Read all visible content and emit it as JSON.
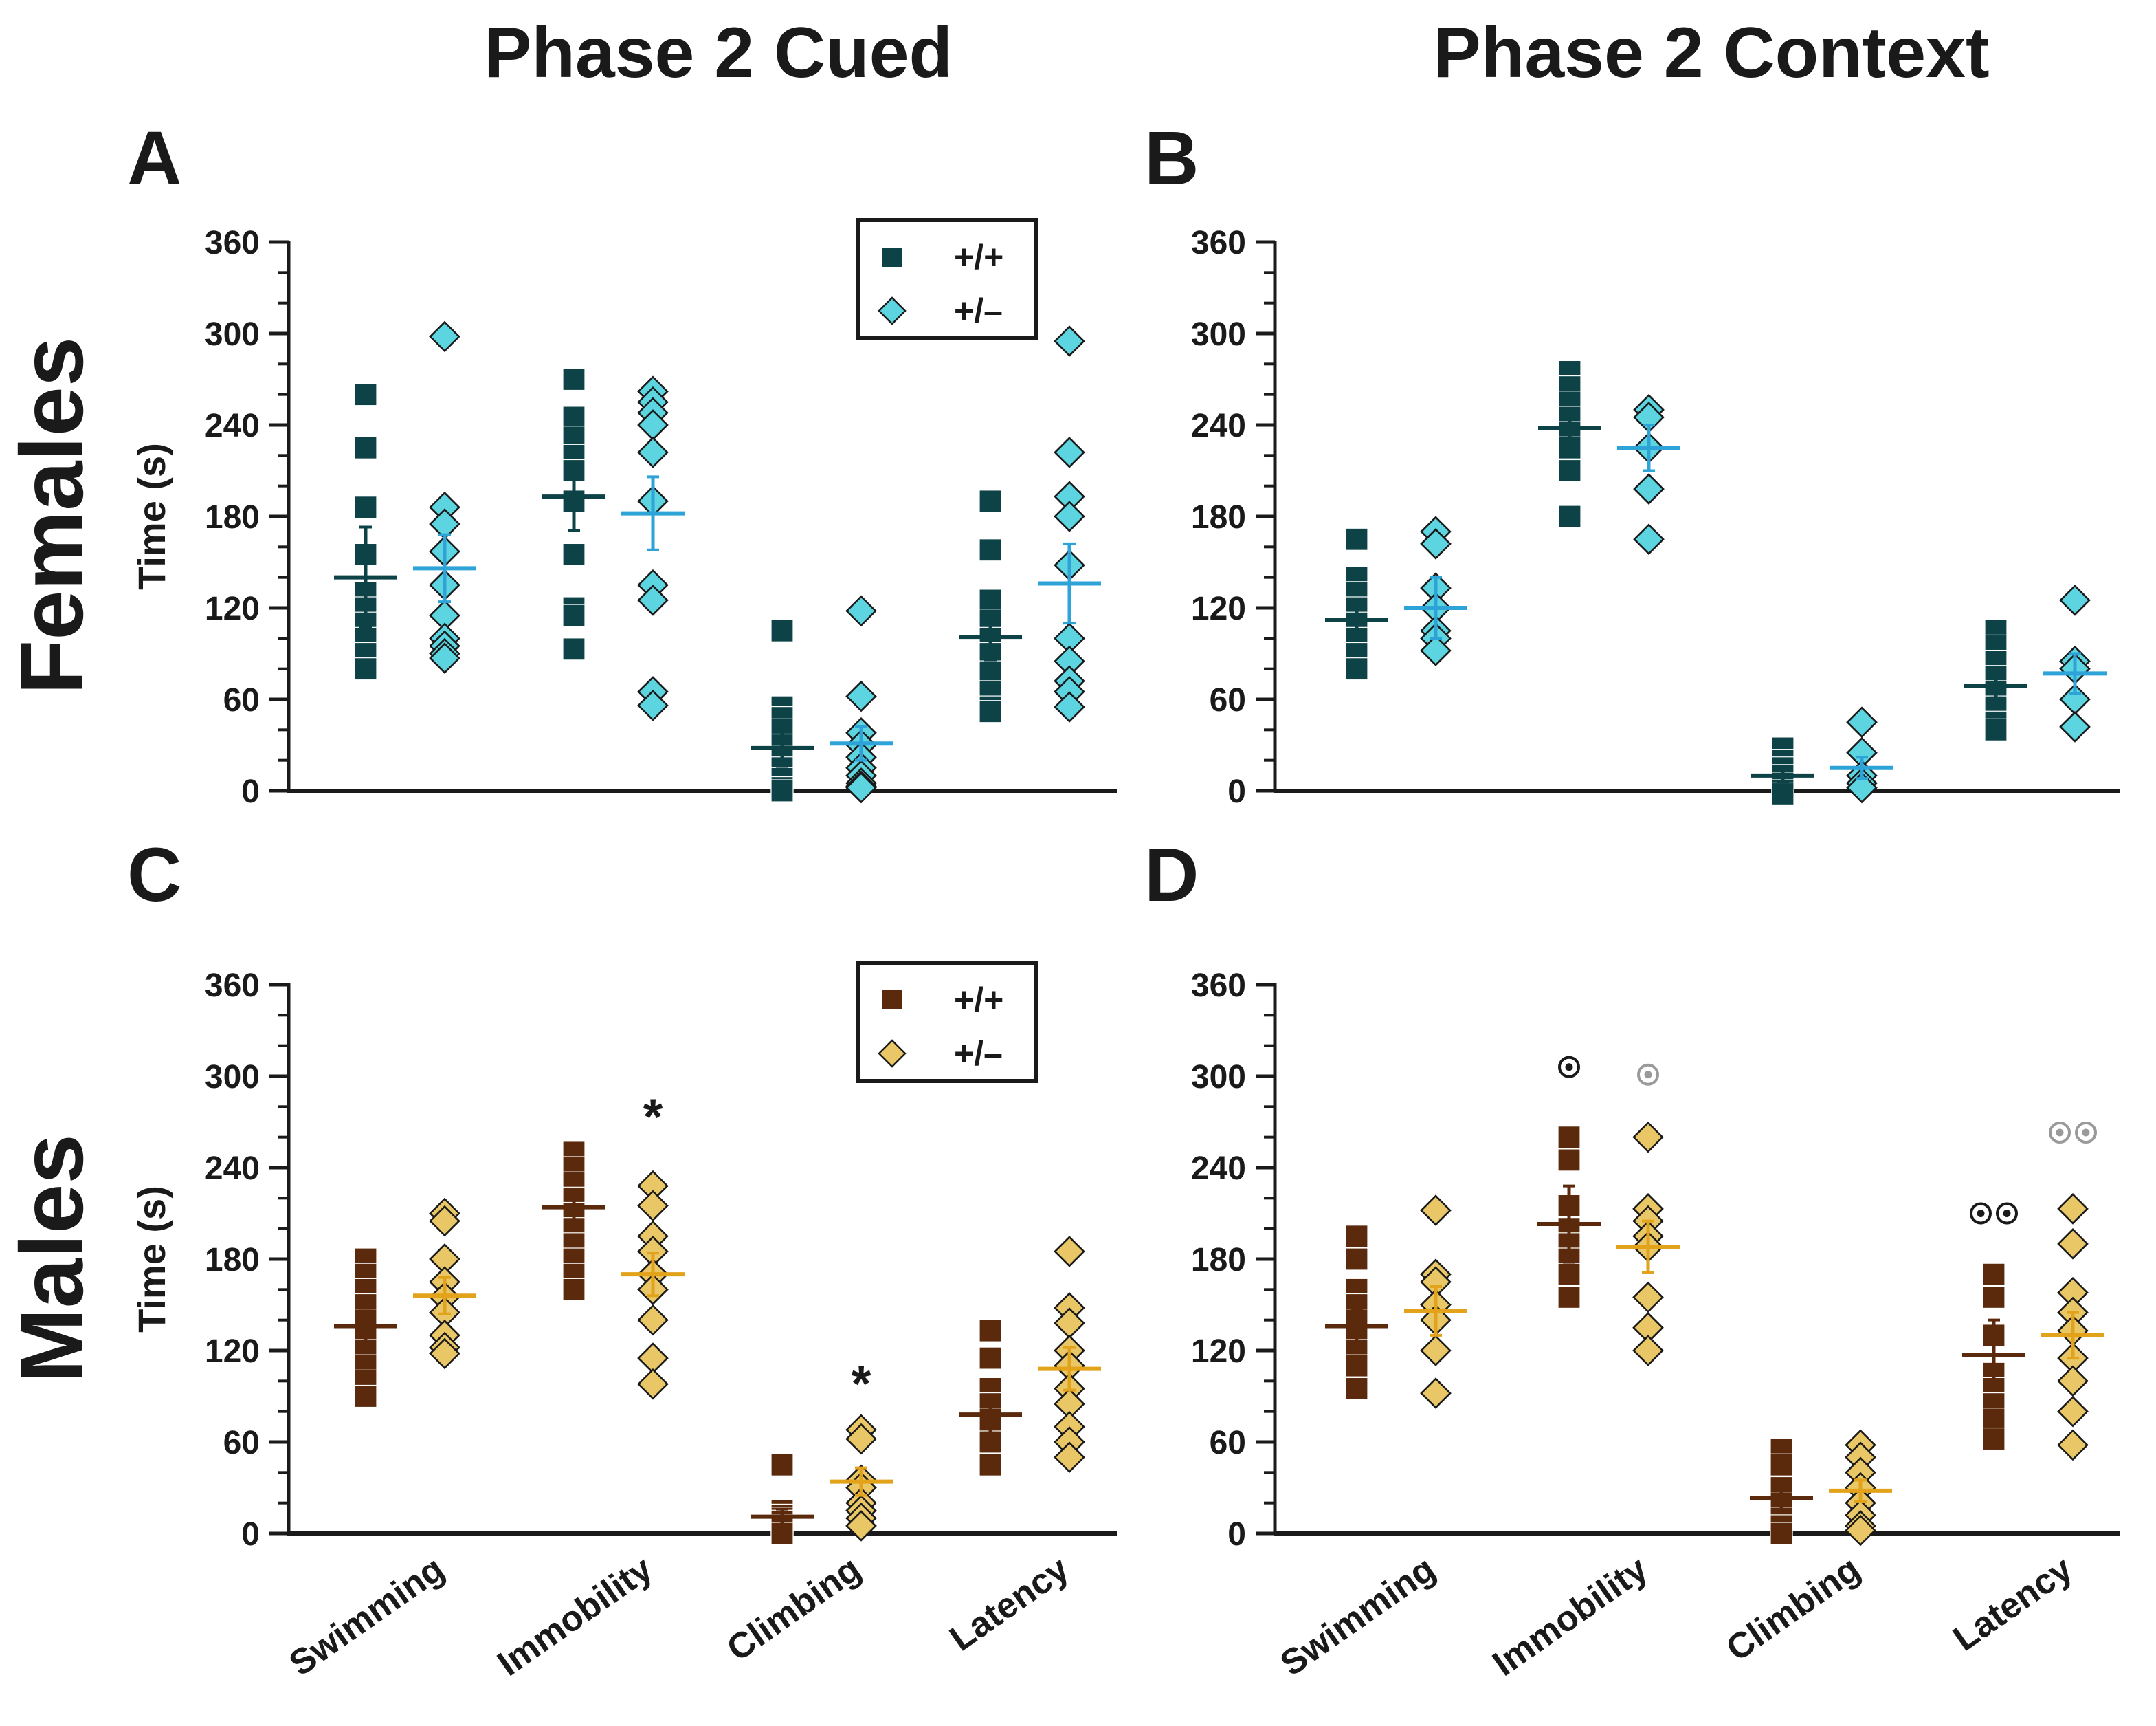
{
  "col_titles": [
    "Phase 2 Cued",
    "Phase 2 Context"
  ],
  "row_titles": [
    "Females",
    "Males"
  ],
  "legend_labels": [
    "+/+",
    "+/–"
  ],
  "colors": {
    "female_wt": "#0d4347",
    "female_het": "#5cd5e0",
    "female_het_mean": "#2ea3d8",
    "male_wt": "#5b2a0c",
    "male_het": "#e9c766",
    "male_het_mean": "#e2a21a",
    "circle_black": "#1a1a1a",
    "circle_grey": "#9a9a9a"
  },
  "chart_data": [
    {
      "type": "scatter",
      "panel": "A",
      "ylabel": "Time (s)",
      "yticks": [
        "0",
        "60",
        "120",
        "180",
        "240",
        "300",
        "360"
      ],
      "ylim": [
        0,
        360
      ],
      "categories": [
        "Swimming",
        "Immobility",
        "Climbing",
        "Latency"
      ],
      "show_xticks": false,
      "legend": true,
      "series": [
        {
          "name": "+/+",
          "marker": "square",
          "points": [
            [
              260,
              225,
              186,
              155,
              130,
              120,
              110,
              100,
              90,
              80
            ],
            [
              270,
              245,
              232,
              220,
              210,
              190,
              155,
              120,
              115,
              93
            ],
            [
              105,
              55,
              48,
              40,
              30,
              22,
              15,
              8,
              2,
              0
            ],
            [
              190,
              158,
              125,
              112,
              100,
              90,
              78,
              65,
              55,
              52
            ]
          ],
          "mean": [
            140,
            193,
            28,
            101
          ],
          "sem": [
            33,
            22,
            12,
            15
          ]
        },
        {
          "name": "+/–",
          "marker": "diamond",
          "points": [
            [
              298,
              186,
              175,
              157,
              135,
              115,
              100,
              95,
              90,
              87
            ],
            [
              262,
              255,
              248,
              240,
              222,
              190,
              135,
              125,
              65,
              56
            ],
            [
              118,
              62,
              38,
              30,
              22,
              15,
              10,
              5,
              3,
              2
            ],
            [
              295,
              222,
              193,
              180,
              148,
              100,
              85,
              72,
              65,
              55
            ]
          ],
          "mean": [
            146,
            182,
            31,
            136
          ],
          "sem": [
            22,
            24,
            11,
            26
          ]
        }
      ]
    },
    {
      "type": "scatter",
      "panel": "B",
      "ylabel": "",
      "yticks": [
        "0",
        "60",
        "120",
        "180",
        "240",
        "300",
        "360"
      ],
      "ylim": [
        0,
        360
      ],
      "categories": [
        "Swimming",
        "Immobility",
        "Climbing",
        "Latency"
      ],
      "show_xticks": false,
      "legend": false,
      "series": [
        {
          "name": "+/+",
          "marker": "square",
          "points": [
            [
              165,
              140,
              130,
              120,
              110,
              100,
              90,
              80
            ],
            [
              275,
              265,
              255,
              245,
              235,
              225,
              210,
              180
            ],
            [
              28,
              20,
              15,
              10,
              5,
              2,
              0,
              -2
            ],
            [
              105,
              95,
              85,
              75,
              65,
              55,
              45,
              40
            ]
          ],
          "mean": [
            112,
            238,
            10,
            69
          ],
          "sem": [
            12,
            12,
            4,
            8
          ]
        },
        {
          "name": "+/–",
          "marker": "diamond",
          "points": [
            [
              170,
              162,
              133,
              120,
              105,
              100,
              92
            ],
            [
              250,
              245,
              225,
              198,
              165
            ],
            [
              45,
              25,
              10,
              5,
              2
            ],
            [
              125,
              85,
              80,
              60,
              42
            ]
          ],
          "mean": [
            120,
            225,
            15,
            77
          ],
          "sem": [
            20,
            15,
            7,
            13
          ]
        }
      ]
    },
    {
      "type": "scatter",
      "panel": "C",
      "ylabel": "Time (s)",
      "yticks": [
        "0",
        "60",
        "120",
        "180",
        "240",
        "300",
        "360"
      ],
      "ylim": [
        0,
        360
      ],
      "categories": [
        "Swimming",
        "Immobility",
        "Climbing",
        "Latency"
      ],
      "show_xticks": true,
      "legend": true,
      "series": [
        {
          "name": "+/+",
          "marker": "square",
          "points": [
            [
              180,
              170,
              160,
              150,
              140,
              130,
              120,
              110,
              100,
              90
            ],
            [
              250,
              240,
              230,
              220,
              210,
              200,
              190,
              180,
              170,
              160
            ],
            [
              45,
              15,
              12,
              10,
              8,
              5,
              3,
              0
            ],
            [
              133,
              115,
              95,
              85,
              75,
              70,
              60,
              45
            ]
          ],
          "mean": [
            136,
            214,
            11,
            78
          ],
          "sem": [
            10,
            10,
            5,
            12
          ]
        },
        {
          "name": "+/–",
          "marker": "diamond",
          "points": [
            [
              210,
              205,
              180,
              165,
              155,
              145,
              130,
              122,
              118
            ],
            [
              228,
              215,
              195,
              185,
              170,
              160,
              140,
              115,
              98
            ],
            [
              68,
              62,
              35,
              30,
              20,
              15,
              10,
              5
            ],
            [
              185,
              148,
              138,
              120,
              110,
              95,
              85,
              70,
              60,
              50
            ]
          ],
          "mean": [
            156,
            170,
            34,
            108
          ],
          "sem": [
            12,
            14,
            9,
            14
          ]
        }
      ],
      "annotations": [
        {
          "text": "*",
          "category": 1,
          "series": 1,
          "y": 280
        },
        {
          "text": "*",
          "category": 2,
          "series": 1,
          "y": 105
        }
      ]
    },
    {
      "type": "scatter",
      "panel": "D",
      "ylabel": "",
      "yticks": [
        "0",
        "60",
        "120",
        "180",
        "240",
        "300",
        "360"
      ],
      "ylim": [
        0,
        360
      ],
      "categories": [
        "Swimming",
        "Immobility",
        "Climbing",
        "Latency"
      ],
      "show_xticks": true,
      "legend": false,
      "series": [
        {
          "name": "+/+",
          "marker": "square",
          "points": [
            [
              195,
              180,
              160,
              150,
              140,
              130,
              120,
              110,
              95
            ],
            [
              260,
              245,
              215,
              200,
              190,
              180,
              170,
              155
            ],
            [
              55,
              45,
              30,
              20,
              10,
              5,
              0
            ],
            [
              170,
              155,
              130,
              105,
              95,
              85,
              75,
              62
            ]
          ],
          "mean": [
            136,
            203,
            23,
            117
          ],
          "sem": [
            11,
            25,
            9,
            23
          ]
        },
        {
          "name": "+/–",
          "marker": "diamond",
          "points": [
            [
              212,
              170,
              165,
              150,
              140,
              120,
              92
            ],
            [
              260,
              213,
              205,
              195,
              188,
              155,
              135,
              120
            ],
            [
              58,
              50,
              40,
              30,
              20,
              12,
              5,
              2
            ],
            [
              213,
              190,
              158,
              145,
              133,
              115,
              100,
              80,
              58
            ]
          ],
          "mean": [
            146,
            188,
            28,
            130
          ],
          "sem": [
            16,
            17,
            7,
            15
          ]
        }
      ],
      "circles": [
        {
          "category": 1,
          "series": 0,
          "y": 306,
          "count": 1,
          "color": "black"
        },
        {
          "category": 1,
          "series": 1,
          "y": 301,
          "count": 1,
          "color": "grey"
        },
        {
          "category": 3,
          "series": 0,
          "y": 210,
          "count": 2,
          "color": "black"
        },
        {
          "category": 3,
          "series": 1,
          "y": 263,
          "count": 2,
          "color": "grey"
        }
      ]
    }
  ]
}
